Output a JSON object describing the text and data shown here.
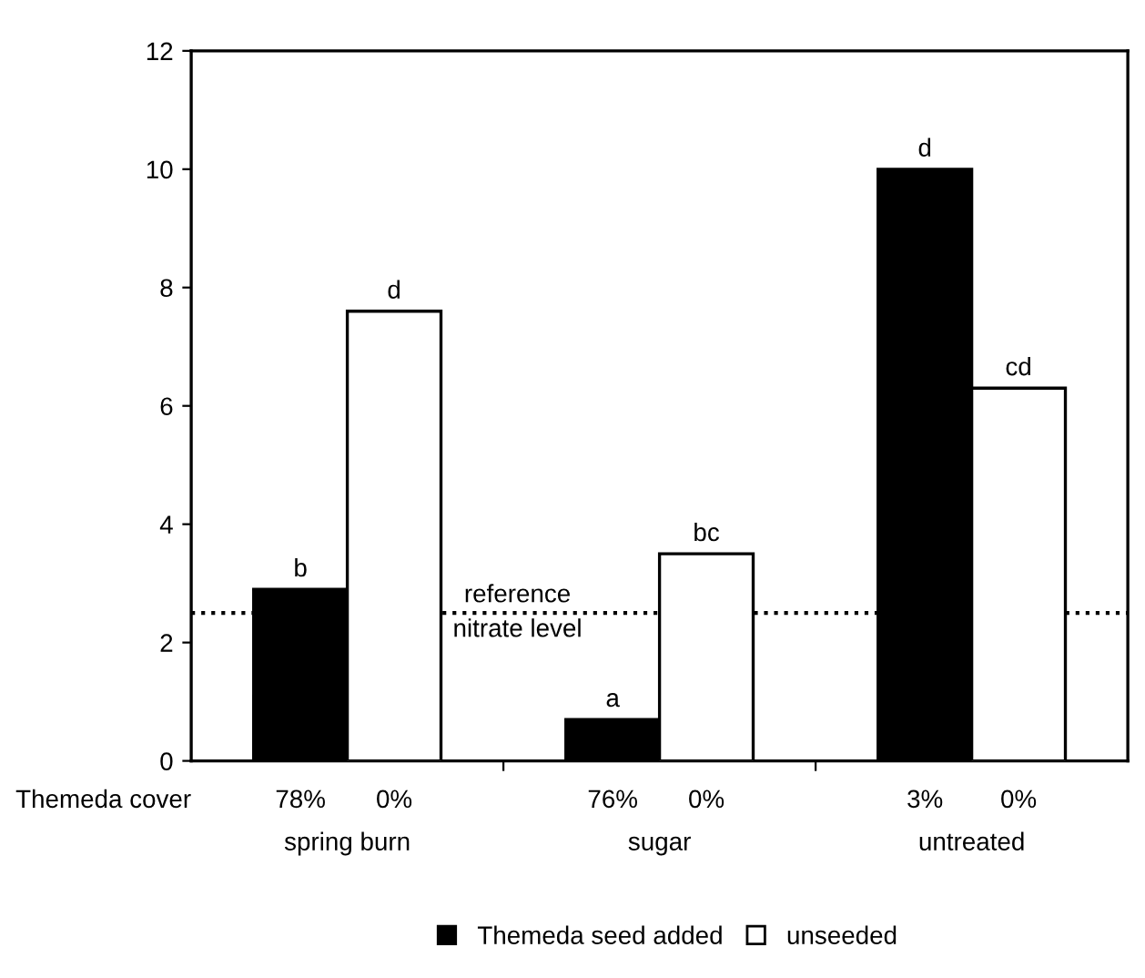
{
  "chart_data": {
    "type": "bar",
    "categories": [
      "spring burn",
      "sugar",
      "untreated"
    ],
    "series": [
      {
        "name": "Themeda seed added",
        "color": "#000000",
        "values": [
          2.9,
          0.7,
          10.0
        ],
        "value_labels": [
          "b",
          "a",
          "d"
        ]
      },
      {
        "name": "unseeded",
        "color": "#ffffff",
        "values": [
          7.6,
          3.5,
          6.3
        ],
        "value_labels": [
          "d",
          "bc",
          "cd"
        ]
      }
    ],
    "ylim": [
      0,
      12
    ],
    "yticks": [
      0,
      2,
      4,
      6,
      8,
      10,
      12
    ],
    "ref_lines": [
      {
        "axis": "y",
        "value": 2.5,
        "label": "reference\nnitrate level",
        "color": "#000000",
        "line_style": "dotted"
      }
    ],
    "annotations": [
      "Themeda cover",
      "78%",
      "0%",
      "76%",
      "0%",
      "3%",
      "0%"
    ],
    "legend": "bottom",
    "marker": "square",
    "grid": false
  }
}
